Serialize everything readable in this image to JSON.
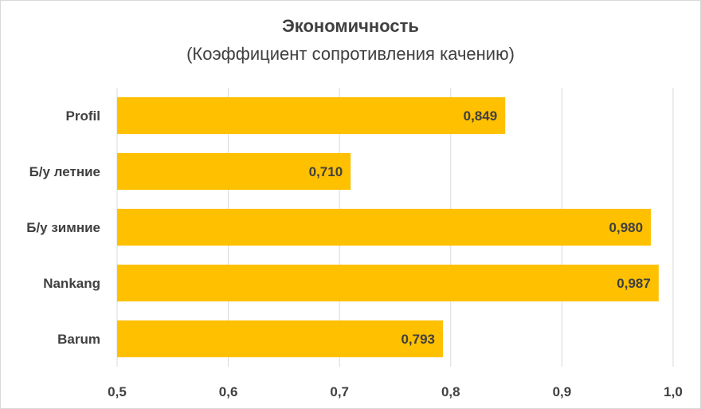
{
  "chart_data": {
    "type": "bar",
    "orientation": "horizontal",
    "title": "Экономичность",
    "subtitle": "(Коэффициент сопротивления качению)",
    "categories": [
      "Profil",
      "Б/у летние",
      "Б/у зимние",
      "Nankang",
      "Barum"
    ],
    "values": [
      0.849,
      0.71,
      0.98,
      0.987,
      0.793
    ],
    "value_labels": [
      "0,849",
      "0,710",
      "0,980",
      "0,987",
      "0,793"
    ],
    "xlim": [
      0.5,
      1.0
    ],
    "xticks": [
      0.5,
      0.6,
      0.7,
      0.8,
      0.9,
      1.0
    ],
    "xtick_labels": [
      "0,5",
      "0,6",
      "0,7",
      "0,8",
      "0,9",
      "1,0"
    ],
    "xlabel": "",
    "ylabel": "",
    "grid": true,
    "legend": "none",
    "colors": {
      "bar": "#FFC000",
      "grid": "#d9d9d9",
      "text": "#404040"
    }
  }
}
